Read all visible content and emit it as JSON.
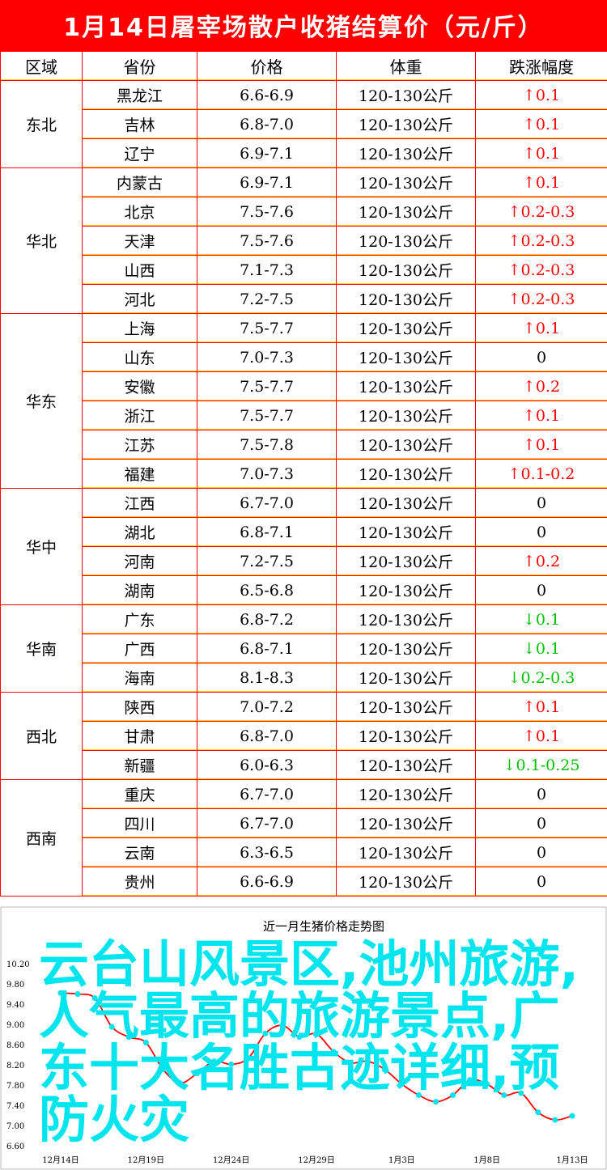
{
  "title": "1月14日屠宰场散户收猪结算价（元/斤）",
  "headers": [
    "区域",
    "省份",
    "价格",
    "体重",
    "跌涨幅度"
  ],
  "colors": {
    "header_bg": "#ff0000",
    "border": "#ff0000",
    "up": "#ff0000",
    "down": "#00c000",
    "line": "#ff0000",
    "marker": "#00e5ee",
    "overlay": "#00e5ee"
  },
  "groups": [
    {
      "region": "东北",
      "rows": [
        {
          "province": "黑龙江",
          "price": "6.6-6.9",
          "weight": "120-130公斤",
          "dir": "up",
          "change": "0.1"
        },
        {
          "province": "吉林",
          "price": "6.8-7.0",
          "weight": "120-130公斤",
          "dir": "up",
          "change": "0.1"
        },
        {
          "province": "辽宁",
          "price": "6.9-7.1",
          "weight": "120-130公斤",
          "dir": "up",
          "change": "0.1"
        }
      ]
    },
    {
      "region": "华北",
      "rows": [
        {
          "province": "内蒙古",
          "price": "6.9-7.1",
          "weight": "120-130公斤",
          "dir": "up",
          "change": "0.1"
        },
        {
          "province": "北京",
          "price": "7.5-7.6",
          "weight": "120-130公斤",
          "dir": "up",
          "change": "0.2-0.3"
        },
        {
          "province": "天津",
          "price": "7.5-7.6",
          "weight": "120-130公斤",
          "dir": "up",
          "change": "0.2-0.3"
        },
        {
          "province": "山西",
          "price": "7.1-7.3",
          "weight": "120-130公斤",
          "dir": "up",
          "change": "0.2-0.3"
        },
        {
          "province": "河北",
          "price": "7.2-7.5",
          "weight": "120-130公斤",
          "dir": "up",
          "change": "0.2-0.3"
        }
      ]
    },
    {
      "region": "华东",
      "rows": [
        {
          "province": "上海",
          "price": "7.5-7.7",
          "weight": "120-130公斤",
          "dir": "up",
          "change": "0.1"
        },
        {
          "province": "山东",
          "price": "7.0-7.3",
          "weight": "120-130公斤",
          "dir": "flat",
          "change": "0"
        },
        {
          "province": "安徽",
          "price": "7.5-7.7",
          "weight": "120-130公斤",
          "dir": "up",
          "change": "0.2"
        },
        {
          "province": "浙江",
          "price": "7.5-7.7",
          "weight": "120-130公斤",
          "dir": "up",
          "change": "0.1"
        },
        {
          "province": "江苏",
          "price": "7.5-7.8",
          "weight": "120-130公斤",
          "dir": "up",
          "change": "0.1"
        },
        {
          "province": "福建",
          "price": "7.0-7.3",
          "weight": "120-130公斤",
          "dir": "up",
          "change": "0.1-0.2"
        }
      ]
    },
    {
      "region": "华中",
      "rows": [
        {
          "province": "江西",
          "price": "6.7-7.0",
          "weight": "120-130公斤",
          "dir": "flat",
          "change": "0"
        },
        {
          "province": "湖北",
          "price": "6.8-7.1",
          "weight": "120-130公斤",
          "dir": "flat",
          "change": "0"
        },
        {
          "province": "河南",
          "price": "7.2-7.5",
          "weight": "120-130公斤",
          "dir": "up",
          "change": "0.2"
        },
        {
          "province": "湖南",
          "price": "6.5-6.8",
          "weight": "120-130公斤",
          "dir": "flat",
          "change": "0"
        }
      ]
    },
    {
      "region": "华南",
      "rows": [
        {
          "province": "广东",
          "price": "6.8-7.2",
          "weight": "120-130公斤",
          "dir": "down",
          "change": "0.1"
        },
        {
          "province": "广西",
          "price": "6.8-7.1",
          "weight": "120-130公斤",
          "dir": "down",
          "change": "0.1"
        },
        {
          "province": "海南",
          "price": "8.1-8.3",
          "weight": "120-130公斤",
          "dir": "down",
          "change": "0.2-0.3"
        }
      ]
    },
    {
      "region": "西北",
      "rows": [
        {
          "province": "陕西",
          "price": "7.0-7.2",
          "weight": "120-130公斤",
          "dir": "up",
          "change": "0.1"
        },
        {
          "province": "甘肃",
          "price": "6.8-7.0",
          "weight": "120-130公斤",
          "dir": "up",
          "change": "0.1"
        },
        {
          "province": "新疆",
          "price": "6.0-6.3",
          "weight": "120-130公斤",
          "dir": "down",
          "change": "0.1-0.25"
        }
      ]
    },
    {
      "region": "西南",
      "rows": [
        {
          "province": "重庆",
          "price": "6.7-7.0",
          "weight": "120-130公斤",
          "dir": "flat",
          "change": "0"
        },
        {
          "province": "四川",
          "price": "6.7-7.0",
          "weight": "120-130公斤",
          "dir": "flat",
          "change": "0"
        },
        {
          "province": "云南",
          "price": "6.3-6.5",
          "weight": "120-130公斤",
          "dir": "flat",
          "change": "0"
        },
        {
          "province": "贵州",
          "price": "6.6-6.9",
          "weight": "120-130公斤",
          "dir": "flat",
          "change": "0"
        }
      ]
    }
  ],
  "overlay_text": "云台山风景区,池州旅游,人气最高的旅游景点,广东十大名胜古迹详细,预防火灾",
  "chart_data": {
    "type": "line",
    "title": "近一月生猪价格走势图",
    "x_tick_labels": [
      "12月14日",
      "12月19日",
      "12月24日",
      "12月29日",
      "1月3日",
      "1月8日",
      "1月13日"
    ],
    "y_tick_labels": [
      "10.20",
      "9.80",
      "9.40",
      "9.00",
      "8.60",
      "8.20",
      "7.80",
      "7.40",
      "7.00",
      "6.60"
    ],
    "ylim": [
      6.6,
      10.2
    ],
    "grid": false,
    "x": [
      "12月14日",
      "12月15日",
      "12月16日",
      "12月17日",
      "12月18日",
      "12月19日",
      "12月20日",
      "12月21日",
      "12月22日",
      "12月23日",
      "12月24日",
      "12月25日",
      "12月26日",
      "12月27日",
      "12月28日",
      "12月29日",
      "12月30日",
      "12月31日",
      "1月1日",
      "1月2日",
      "1月3日",
      "1月4日",
      "1月5日",
      "1月6日",
      "1月7日",
      "1月8日",
      "1月9日",
      "1月10日",
      "1月11日",
      "1月12日",
      "1月13日"
    ],
    "values": [
      9.62,
      9.6,
      9.52,
      8.95,
      8.75,
      8.64,
      8.11,
      7.84,
      8.03,
      8.27,
      8.21,
      8.33,
      8.82,
      8.98,
      8.75,
      8.81,
      8.46,
      8.24,
      8.27,
      8.11,
      7.82,
      7.6,
      7.47,
      7.6,
      7.9,
      7.82,
      7.6,
      7.64,
      7.26,
      7.11,
      7.19
    ]
  }
}
